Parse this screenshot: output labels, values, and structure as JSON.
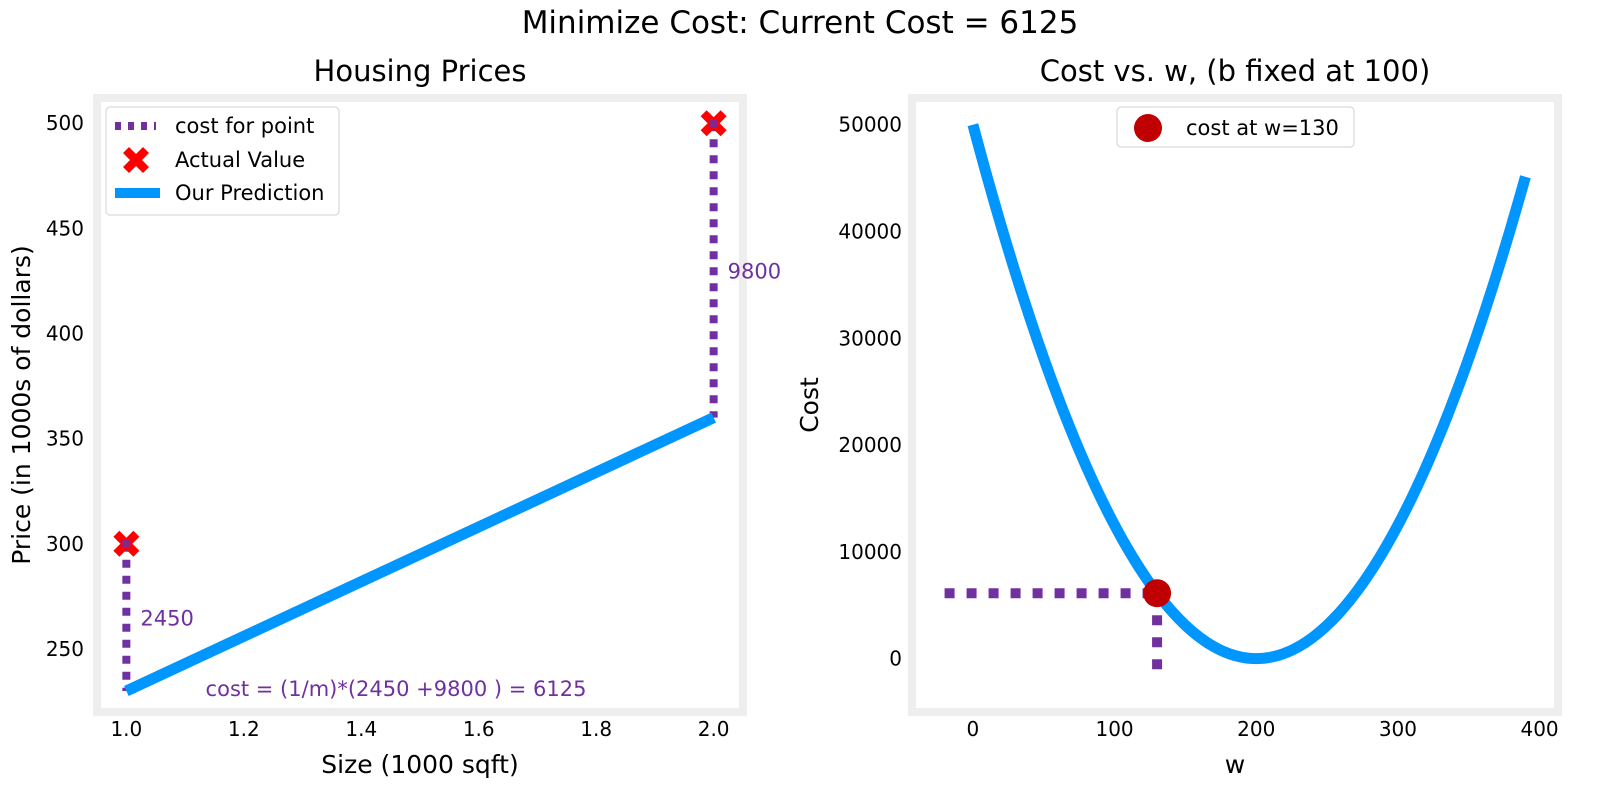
{
  "figure": {
    "suptitle": "Minimize Cost: Current Cost = 6125"
  },
  "colors": {
    "prediction": "#0096ff",
    "actual": "#ff0000",
    "cost_line": "#7030a0",
    "cost_point": "#c00000",
    "frame": "#eeeeee",
    "text": "#000000"
  },
  "chart_data": [
    {
      "type": "line",
      "title": "Housing Prices",
      "xlabel": "Size (1000 sqft)",
      "ylabel": "Price (in 1000s of dollars)",
      "xlim": [
        0.95,
        2.05
      ],
      "ylim": [
        220,
        512
      ],
      "xticks": [
        1.0,
        1.2,
        1.4,
        1.6,
        1.8,
        2.0
      ],
      "xtick_labels": [
        "1.0",
        "1.2",
        "1.4",
        "1.6",
        "1.8",
        "2.0"
      ],
      "yticks": [
        250,
        300,
        350,
        400,
        450,
        500
      ],
      "ytick_labels": [
        "250",
        "300",
        "350",
        "400",
        "450",
        "500"
      ],
      "grid": false,
      "legend_position": "top-left",
      "legend": [
        {
          "label": "cost for point",
          "kind": "dotted-line"
        },
        {
          "label": "Actual Value",
          "kind": "x-marker"
        },
        {
          "label": "Our Prediction",
          "kind": "line"
        }
      ],
      "series": [
        {
          "name": "Our Prediction",
          "kind": "line",
          "x": [
            1.0,
            2.0
          ],
          "y": [
            230,
            360
          ]
        },
        {
          "name": "Actual Value",
          "kind": "scatter",
          "x": [
            1.0,
            2.0
          ],
          "y": [
            300,
            500
          ]
        }
      ],
      "cost_segments": [
        {
          "x": 1.0,
          "y_pred": 230,
          "y_actual": 300,
          "label": "2450"
        },
        {
          "x": 2.0,
          "y_pred": 360,
          "y_actual": 500,
          "label": "9800"
        }
      ],
      "annotation": "cost = (1/m)*(2450 +9800 ) = 6125"
    },
    {
      "type": "line",
      "title": "Cost vs. w, (b fixed at 100)",
      "xlabel": "w",
      "ylabel": "Cost",
      "xlim": [
        -43,
        413
      ],
      "ylim": [
        -5000,
        52500
      ],
      "xticks": [
        0,
        100,
        200,
        300,
        400
      ],
      "xtick_labels": [
        "0",
        "100",
        "200",
        "300",
        "400"
      ],
      "yticks": [
        0,
        10000,
        20000,
        30000,
        40000,
        50000
      ],
      "ytick_labels": [
        "0",
        "10000",
        "20000",
        "30000",
        "40000",
        "50000"
      ],
      "grid": false,
      "legend_position": "top-center",
      "legend": [
        {
          "label": "cost at w=130",
          "kind": "circle-marker"
        }
      ],
      "curve": {
        "name": "Cost",
        "formula": "cost(w) = 1.25 * (w - 200)^2",
        "w_range": [
          0,
          390
        ],
        "coefficient": 1.25,
        "vertex_w": 200
      },
      "current_point": {
        "w": 130,
        "cost": 6125,
        "label": "cost at w=130"
      },
      "guide_lines": {
        "horizontal_from_w": -20,
        "vertical_to_cost": -2000
      }
    }
  ]
}
